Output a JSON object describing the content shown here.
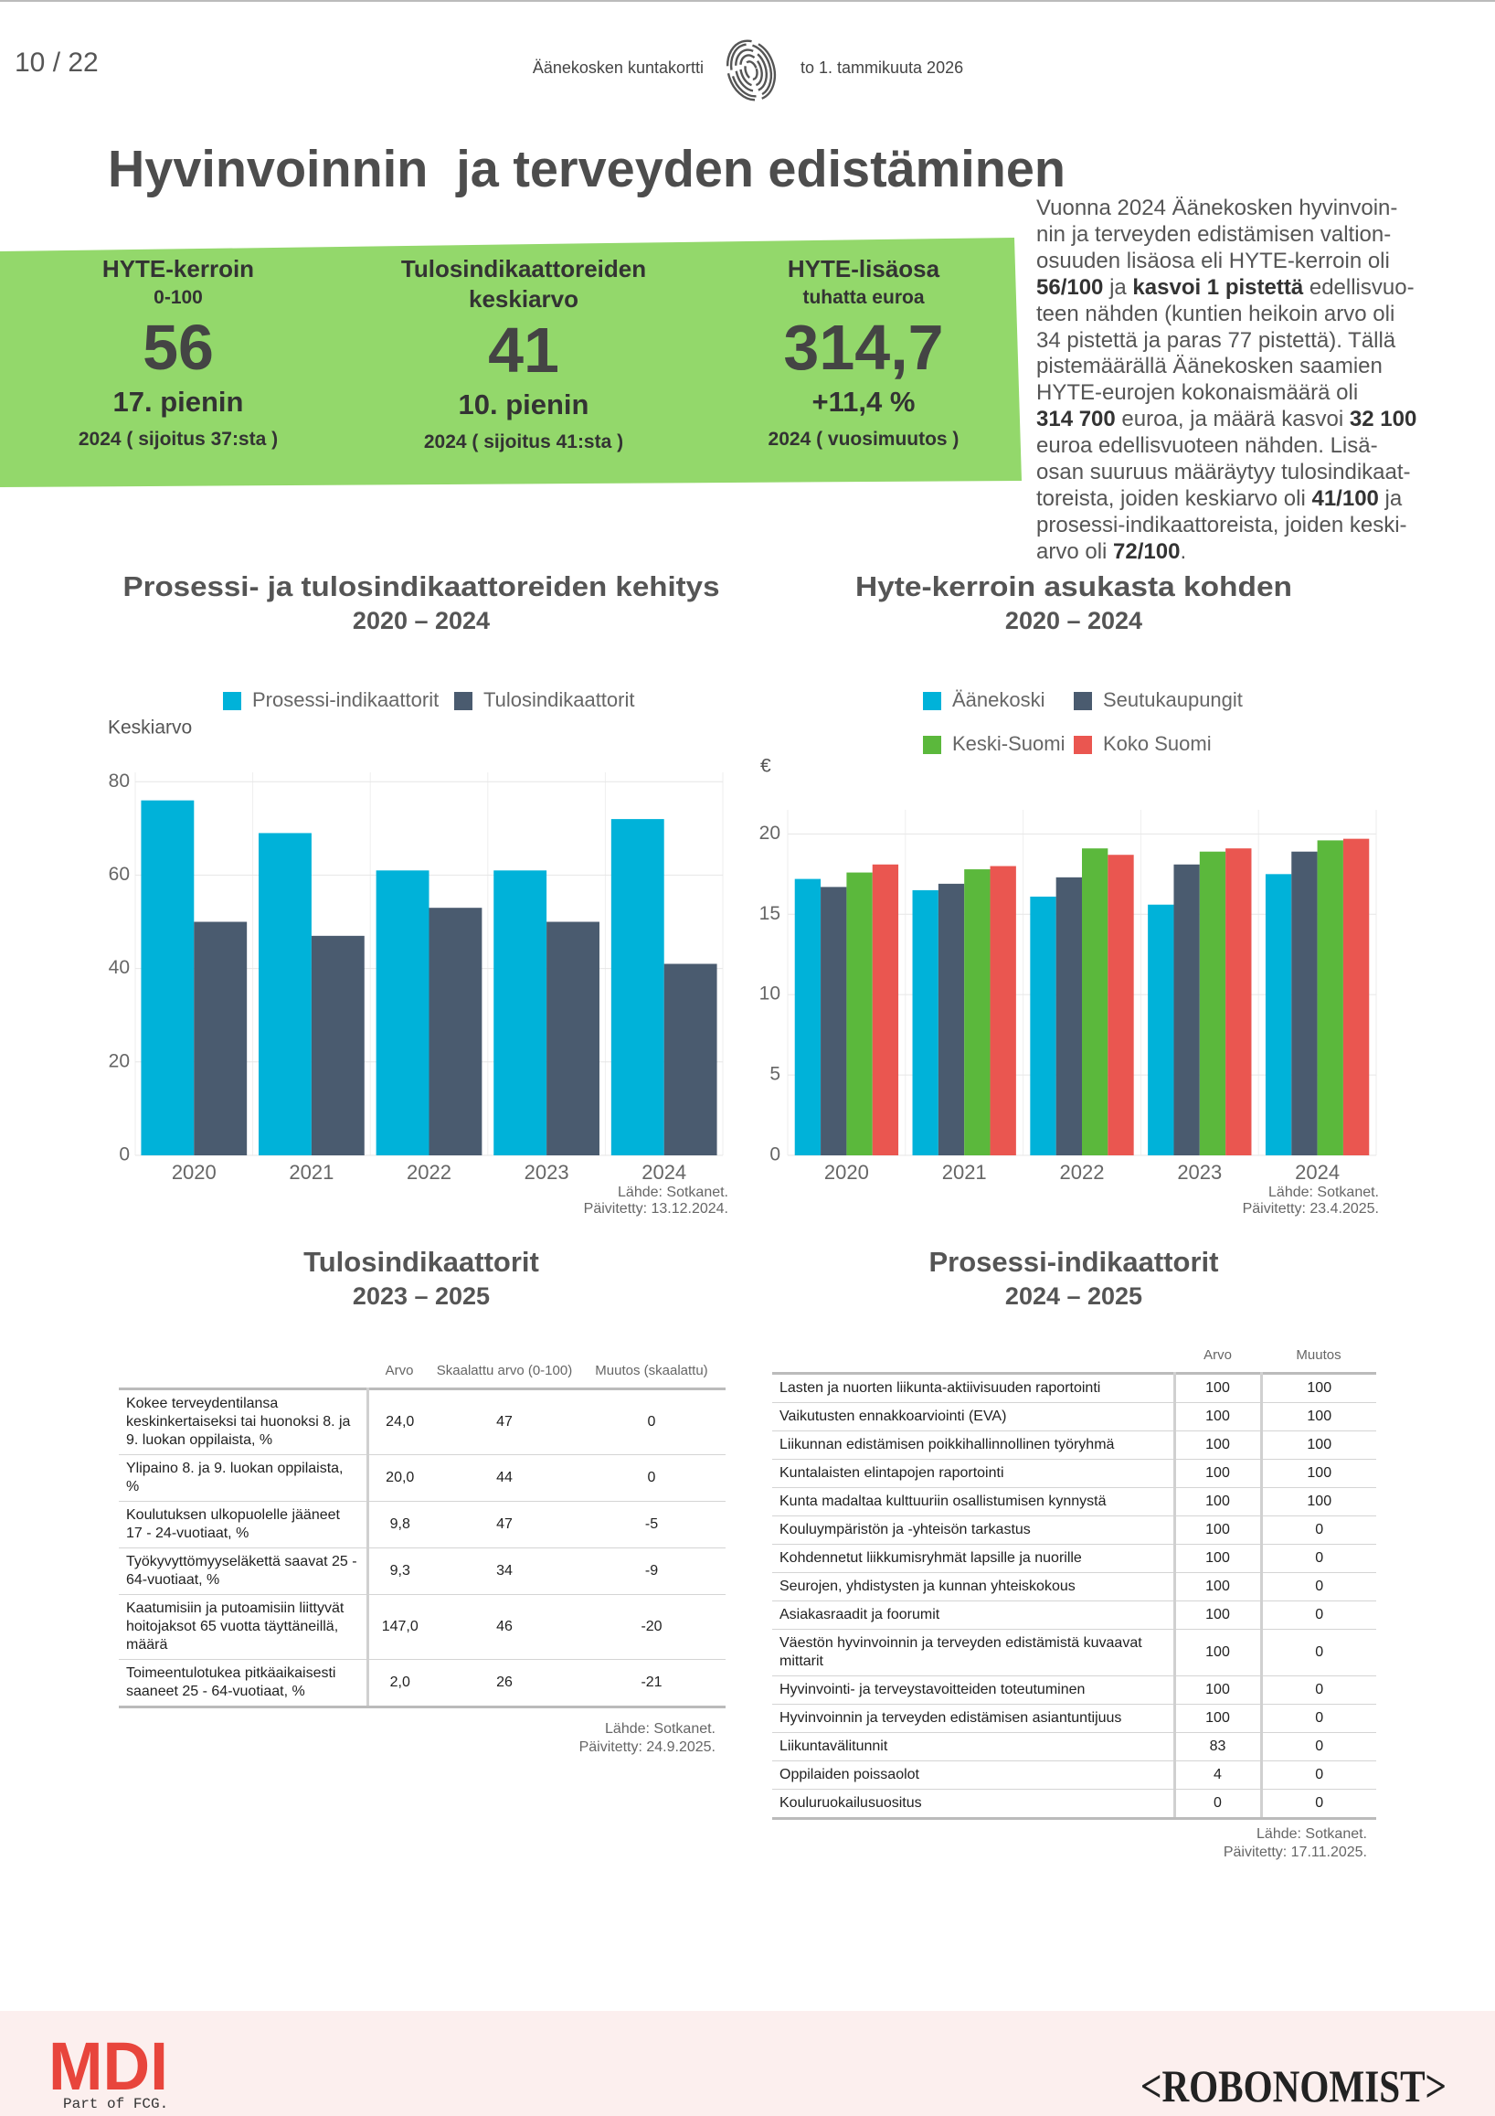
{
  "header": {
    "page": "10 / 22",
    "doc": "Äänekosken kuntakortti",
    "date": "to 1. tammikuuta 2026"
  },
  "title": "Hyvinvoinnin  ja terveyden edistäminen",
  "kpis": [
    {
      "title": "HYTE-kerroin",
      "subtitle": "0-100",
      "value": "56",
      "rank": "17. pienin",
      "note": "2024 ( sijoitus 37:sta )"
    },
    {
      "title": "Tulosindikaattoreiden keskiarvo",
      "value": "41",
      "rank": "10. pienin",
      "note": "2024 ( sijoitus 41:sta )"
    },
    {
      "title": "HYTE-lisäosa",
      "subtitle": "tuhatta euroa",
      "value": "314,7",
      "rank": "+11,4 %",
      "note": "2024 ( vuosimuutos )"
    }
  ],
  "intro": [
    {
      "text": "Vuonna 2024 Äänekosken hyvinvoin-\nnin ja terveyden edistämisen valtion-\nosuuden lisäosa eli HYTE-kerroin oli\n"
    },
    {
      "text": "56/100",
      "bold": true
    },
    {
      "text": " ja "
    },
    {
      "text": "kasvoi 1 pistettä",
      "bold": true
    },
    {
      "text": " edellisvuo-\nteen nähden (kuntien heikoin arvo oli\n34 pistettä ja paras 77 pistettä). Tällä\npistemäärällä Äänekosken saamien\nHYTE-eurojen kokonaismäärä oli\n"
    },
    {
      "text": "314 700",
      "bold": true
    },
    {
      "text": " euroa, ja määrä kasvoi "
    },
    {
      "text": "32 100",
      "bold": true
    },
    {
      "text": "\neuroa edellisvuoteen nähden. Lisä-\nosan suuruus määräytyy tulosindikaat-\ntoreista, joiden keskiarvo oli "
    },
    {
      "text": "41/100",
      "bold": true
    },
    {
      "text": " ja\nprosessi-indikaattoreista, joiden keski-\narvo oli "
    },
    {
      "text": "72/100",
      "bold": true
    },
    {
      "text": "."
    }
  ],
  "chart_data": [
    {
      "type": "bar",
      "title": "Prosessi- ja tulosindikaattoreiden kehitys",
      "subtitle": "2020 – 2024",
      "ylabel": "Keskiarvo",
      "categories": [
        "2020",
        "2021",
        "2022",
        "2023",
        "2024"
      ],
      "series": [
        {
          "name": "Prosessi-indikaattorit",
          "color": "#00b2d9",
          "values": [
            76,
            69,
            61,
            61,
            72
          ]
        },
        {
          "name": "Tulosindikaattorit",
          "color": "#4a5b6f",
          "values": [
            50,
            47,
            53,
            50,
            41
          ]
        }
      ],
      "ylim": [
        0,
        82
      ],
      "yticks": [
        0,
        20,
        40,
        60,
        80
      ],
      "grid": true,
      "source": [
        "Lähde: Sotkanet.",
        "Päivitetty: 13.12.2024."
      ]
    },
    {
      "type": "bar",
      "title": "Hyte-kerroin asukasta kohden",
      "subtitle": "2020 – 2024",
      "ylabel": "€",
      "categories": [
        "2020",
        "2021",
        "2022",
        "2023",
        "2024"
      ],
      "series": [
        {
          "name": "Äänekoski",
          "color": "#00b2d9",
          "values": [
            17.2,
            16.5,
            16.1,
            15.6,
            17.5
          ]
        },
        {
          "name": "Seutukaupungit",
          "color": "#4a5b6f",
          "values": [
            16.7,
            16.9,
            17.3,
            18.1,
            18.9
          ]
        },
        {
          "name": "Keski-Suomi",
          "color": "#5bb83c",
          "values": [
            17.6,
            17.8,
            19.1,
            18.9,
            19.6
          ]
        },
        {
          "name": "Koko Suomi",
          "color": "#ea5650",
          "values": [
            18.1,
            18.0,
            18.7,
            19.1,
            19.7
          ]
        }
      ],
      "ylim": [
        0,
        21.5
      ],
      "yticks": [
        0,
        5,
        10,
        15,
        20
      ],
      "grid": true,
      "source": [
        "Lähde: Sotkanet.",
        "Päivitetty: 23.4.2025."
      ]
    }
  ],
  "tables": [
    {
      "title": "Tulosindikaattorit",
      "subtitle": "2023 – 2025",
      "columns": [
        "Arvo",
        "Skaalattu arvo (0-100)",
        "Muutos (skaalattu)"
      ],
      "rows": [
        [
          "Kokee terveydentilansa keskinkertaiseksi tai huonoksi 8. ja 9. luokan oppilaista, %",
          "24,0",
          "47",
          "0"
        ],
        [
          "Ylipaino 8. ja 9. luokan oppilaista, %",
          "20,0",
          "44",
          "0"
        ],
        [
          "Koulutuksen ulkopuolelle jääneet 17 - 24-vuotiaat, %",
          "9,8",
          "47",
          "-5"
        ],
        [
          "Työkyvyttömyyseläkettä saavat 25 - 64-vuotiaat, %",
          "9,3",
          "34",
          "-9"
        ],
        [
          "Kaatumisiin ja putoamisiin liittyvät hoitojaksot 65 vuotta täyttäneillä, määrä",
          "147,0",
          "46",
          "-20"
        ],
        [
          "Toimeentulotukea pitkäaikaisesti saaneet 25 - 64-vuotiaat, %",
          "2,0",
          "26",
          "-21"
        ]
      ],
      "source": [
        "Lähde: Sotkanet.",
        "Päivitetty: 24.9.2025."
      ]
    },
    {
      "title": "Prosessi-indikaattorit",
      "subtitle": "2024 – 2025",
      "columns": [
        "Arvo",
        "Muutos"
      ],
      "rows": [
        [
          "Lasten ja nuorten liikunta-aktiivisuuden raportointi",
          "100",
          "100"
        ],
        [
          "Vaikutusten ennakkoarviointi (EVA)",
          "100",
          "100"
        ],
        [
          "Liikunnan edistämisen poikkihallinnollinen työryhmä",
          "100",
          "100"
        ],
        [
          "Kuntalaisten elintapojen raportointi",
          "100",
          "100"
        ],
        [
          "Kunta madaltaa kulttuuriin osallistumisen kynnystä",
          "100",
          "100"
        ],
        [
          "Kouluympäristön ja -yhteisön tarkastus",
          "100",
          "0"
        ],
        [
          "Kohdennetut liikkumisryhmät lapsille ja nuorille",
          "100",
          "0"
        ],
        [
          "Seurojen, yhdistysten ja kunnan yhteiskokous",
          "100",
          "0"
        ],
        [
          "Asiakasraadit ja foorumit",
          "100",
          "0"
        ],
        [
          "Väestön hyvinvoinnin ja terveyden edistämistä kuvaavat mittarit",
          "100",
          "0"
        ],
        [
          "Hyvinvointi- ja terveystavoitteiden toteutuminen",
          "100",
          "0"
        ],
        [
          "Hyvinvoinnin ja terveyden edistämisen asiantuntijuus",
          "100",
          "0"
        ],
        [
          "Liikuntavälitunnit",
          "83",
          "0"
        ],
        [
          "Oppilaiden poissaolot",
          "4",
          "0"
        ],
        [
          "Kouluruokailusuositus",
          "0",
          "0"
        ]
      ],
      "source": [
        "Lähde: Sotkanet.",
        "Päivitetty: 17.11.2025."
      ]
    }
  ],
  "footer": {
    "logo": "MDI",
    "tagline": "Part of FCG.",
    "brand": "<ROBONOMIST>"
  }
}
